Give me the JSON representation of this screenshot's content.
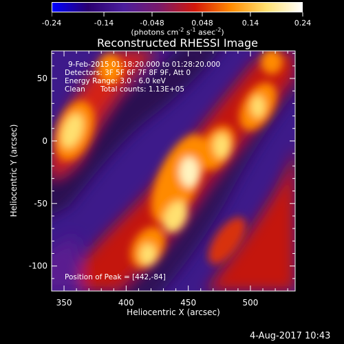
{
  "colorbar": {
    "ticks": [
      "-0.24",
      "-0.14",
      "-0.048",
      "0.048",
      "0.14",
      "0.24"
    ],
    "tick_values": [
      -0.24,
      -0.14,
      -0.048,
      0.048,
      0.14,
      0.24
    ],
    "unit_label_parts": [
      "(photons cm",
      "-2",
      " s",
      "-1",
      " asec",
      "-2",
      ")"
    ],
    "colors": [
      "#0000ff",
      "#2a0070",
      "#4b1e9c",
      "#7a1a6a",
      "#d4180a",
      "#ff8a00",
      "#ffe070",
      "#ffffff"
    ]
  },
  "chart_data": {
    "type": "heatmap",
    "title": "Reconstructed RHESSI Image",
    "xlabel": "Heliocentric X (arcsec)",
    "ylabel": "Heliocentric Y (arcsec)",
    "xlim": [
      340,
      536
    ],
    "ylim": [
      -120,
      72
    ],
    "xticks": [
      350,
      400,
      450,
      500
    ],
    "yticks": [
      50,
      0,
      -50,
      -100
    ],
    "annotations": {
      "time_range": "9-Feb-2015 01:18:20.000 to 01:28:20.000",
      "detectors": "Detectors: 3F 5F 6F 7F 8F 9F, Att 0",
      "energy_range": "Energy Range: 3.0 - 6.0 keV",
      "algorithm_label": "Clean",
      "total_counts": "Total counts: 1.13E+05",
      "peak": "Position of Peak = [442,-84]"
    }
  },
  "footer": {
    "timestamp": "4-Aug-2017 10:43"
  }
}
